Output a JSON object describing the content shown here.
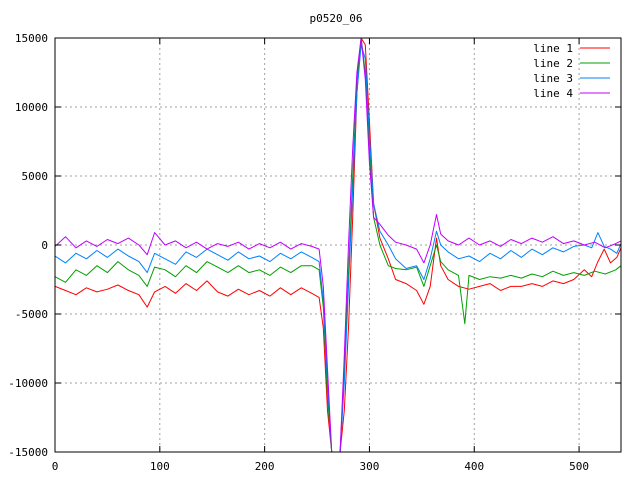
{
  "chart_data": {
    "type": "line",
    "title": "p0520_06",
    "xlabel": "",
    "ylabel": "",
    "xlim": [
      0,
      540
    ],
    "ylim": [
      -15000,
      15000
    ],
    "xticks": [
      0,
      100,
      200,
      300,
      400,
      500
    ],
    "yticks": [
      -15000,
      -10000,
      -5000,
      0,
      5000,
      10000,
      15000
    ],
    "grid": true,
    "legend_position": "top-right",
    "series": [
      {
        "name": "line 1",
        "color": "#ff0000",
        "points": [
          [
            0,
            -3000
          ],
          [
            10,
            -3300
          ],
          [
            20,
            -3600
          ],
          [
            30,
            -3100
          ],
          [
            40,
            -3400
          ],
          [
            50,
            -3200
          ],
          [
            60,
            -2900
          ],
          [
            70,
            -3300
          ],
          [
            80,
            -3600
          ],
          [
            88,
            -4500
          ],
          [
            95,
            -3400
          ],
          [
            105,
            -3000
          ],
          [
            115,
            -3500
          ],
          [
            125,
            -2800
          ],
          [
            135,
            -3300
          ],
          [
            145,
            -2600
          ],
          [
            155,
            -3400
          ],
          [
            165,
            -3700
          ],
          [
            175,
            -3200
          ],
          [
            185,
            -3600
          ],
          [
            195,
            -3300
          ],
          [
            205,
            -3700
          ],
          [
            215,
            -3100
          ],
          [
            225,
            -3600
          ],
          [
            235,
            -3100
          ],
          [
            245,
            -3500
          ],
          [
            252,
            -3800
          ],
          [
            256,
            -6000
          ],
          [
            260,
            -12000
          ],
          [
            264,
            -15000
          ],
          [
            268,
            -15000
          ],
          [
            272,
            -15000
          ],
          [
            276,
            -12000
          ],
          [
            280,
            -6000
          ],
          [
            284,
            2000
          ],
          [
            288,
            11000
          ],
          [
            292,
            15000
          ],
          [
            296,
            14500
          ],
          [
            300,
            9000
          ],
          [
            304,
            3000
          ],
          [
            310,
            500
          ],
          [
            318,
            -1000
          ],
          [
            325,
            -2500
          ],
          [
            335,
            -2800
          ],
          [
            345,
            -3300
          ],
          [
            352,
            -4300
          ],
          [
            358,
            -3000
          ],
          [
            364,
            500
          ],
          [
            368,
            -1500
          ],
          [
            375,
            -2500
          ],
          [
            385,
            -3000
          ],
          [
            395,
            -3200
          ],
          [
            405,
            -3000
          ],
          [
            415,
            -2800
          ],
          [
            425,
            -3300
          ],
          [
            435,
            -3000
          ],
          [
            445,
            -3000
          ],
          [
            455,
            -2800
          ],
          [
            465,
            -3000
          ],
          [
            475,
            -2600
          ],
          [
            485,
            -2800
          ],
          [
            495,
            -2500
          ],
          [
            505,
            -1800
          ],
          [
            512,
            -2300
          ],
          [
            518,
            -1200
          ],
          [
            524,
            -300
          ],
          [
            530,
            -1300
          ],
          [
            536,
            -900
          ],
          [
            540,
            -200
          ]
        ]
      },
      {
        "name": "line 2",
        "color": "#00a000",
        "points": [
          [
            0,
            -2300
          ],
          [
            10,
            -2700
          ],
          [
            20,
            -1800
          ],
          [
            30,
            -2200
          ],
          [
            40,
            -1500
          ],
          [
            50,
            -2000
          ],
          [
            60,
            -1200
          ],
          [
            70,
            -1800
          ],
          [
            80,
            -2200
          ],
          [
            88,
            -3000
          ],
          [
            95,
            -1600
          ],
          [
            105,
            -1800
          ],
          [
            115,
            -2300
          ],
          [
            125,
            -1500
          ],
          [
            135,
            -2000
          ],
          [
            145,
            -1200
          ],
          [
            155,
            -1600
          ],
          [
            165,
            -2000
          ],
          [
            175,
            -1500
          ],
          [
            185,
            -2000
          ],
          [
            195,
            -1800
          ],
          [
            205,
            -2200
          ],
          [
            215,
            -1600
          ],
          [
            225,
            -2000
          ],
          [
            235,
            -1500
          ],
          [
            245,
            -1500
          ],
          [
            252,
            -1800
          ],
          [
            256,
            -4500
          ],
          [
            260,
            -11000
          ],
          [
            264,
            -15000
          ],
          [
            268,
            -15000
          ],
          [
            272,
            -15000
          ],
          [
            276,
            -9000
          ],
          [
            280,
            -2000
          ],
          [
            284,
            5000
          ],
          [
            288,
            12000
          ],
          [
            292,
            15000
          ],
          [
            296,
            12500
          ],
          [
            300,
            7000
          ],
          [
            304,
            2000
          ],
          [
            310,
            0
          ],
          [
            318,
            -1500
          ],
          [
            325,
            -1700
          ],
          [
            335,
            -1800
          ],
          [
            345,
            -1600
          ],
          [
            352,
            -3000
          ],
          [
            358,
            -1500
          ],
          [
            364,
            0
          ],
          [
            368,
            -1200
          ],
          [
            375,
            -1800
          ],
          [
            385,
            -2200
          ],
          [
            391,
            -5700
          ],
          [
            395,
            -2200
          ],
          [
            405,
            -2500
          ],
          [
            415,
            -2300
          ],
          [
            425,
            -2400
          ],
          [
            435,
            -2200
          ],
          [
            445,
            -2400
          ],
          [
            455,
            -2100
          ],
          [
            465,
            -2300
          ],
          [
            475,
            -1900
          ],
          [
            485,
            -2200
          ],
          [
            495,
            -2000
          ],
          [
            505,
            -2200
          ],
          [
            515,
            -1900
          ],
          [
            525,
            -2100
          ],
          [
            535,
            -1800
          ],
          [
            540,
            -1500
          ]
        ]
      },
      {
        "name": "line 3",
        "color": "#0080ff",
        "points": [
          [
            0,
            -800
          ],
          [
            10,
            -1300
          ],
          [
            20,
            -600
          ],
          [
            30,
            -1000
          ],
          [
            40,
            -400
          ],
          [
            50,
            -900
          ],
          [
            60,
            -300
          ],
          [
            70,
            -800
          ],
          [
            80,
            -1200
          ],
          [
            88,
            -2000
          ],
          [
            95,
            -600
          ],
          [
            105,
            -1000
          ],
          [
            115,
            -1400
          ],
          [
            125,
            -500
          ],
          [
            135,
            -900
          ],
          [
            145,
            -300
          ],
          [
            155,
            -700
          ],
          [
            165,
            -1100
          ],
          [
            175,
            -500
          ],
          [
            185,
            -1000
          ],
          [
            195,
            -800
          ],
          [
            205,
            -1200
          ],
          [
            215,
            -600
          ],
          [
            225,
            -1000
          ],
          [
            235,
            -500
          ],
          [
            245,
            -900
          ],
          [
            252,
            -1200
          ],
          [
            256,
            -4000
          ],
          [
            260,
            -10000
          ],
          [
            264,
            -15000
          ],
          [
            268,
            -15000
          ],
          [
            272,
            -15000
          ],
          [
            276,
            -10000
          ],
          [
            280,
            -3000
          ],
          [
            284,
            4000
          ],
          [
            288,
            11000
          ],
          [
            292,
            14500
          ],
          [
            296,
            13500
          ],
          [
            300,
            8000
          ],
          [
            304,
            3000
          ],
          [
            310,
            1000
          ],
          [
            318,
            0
          ],
          [
            325,
            -1000
          ],
          [
            335,
            -1700
          ],
          [
            345,
            -1500
          ],
          [
            352,
            -2500
          ],
          [
            358,
            -1000
          ],
          [
            364,
            1000
          ],
          [
            368,
            0
          ],
          [
            375,
            -500
          ],
          [
            385,
            -1000
          ],
          [
            395,
            -800
          ],
          [
            405,
            -1200
          ],
          [
            415,
            -600
          ],
          [
            425,
            -1000
          ],
          [
            435,
            -400
          ],
          [
            445,
            -900
          ],
          [
            455,
            -300
          ],
          [
            465,
            -700
          ],
          [
            475,
            -200
          ],
          [
            485,
            -500
          ],
          [
            495,
            -100
          ],
          [
            505,
            0
          ],
          [
            512,
            -200
          ],
          [
            518,
            900
          ],
          [
            524,
            -100
          ],
          [
            530,
            -300
          ],
          [
            536,
            -600
          ],
          [
            540,
            100
          ]
        ]
      },
      {
        "name": "line 4",
        "color": "#c000ff",
        "points": [
          [
            0,
            -100
          ],
          [
            10,
            600
          ],
          [
            20,
            -200
          ],
          [
            30,
            300
          ],
          [
            40,
            -100
          ],
          [
            50,
            400
          ],
          [
            60,
            100
          ],
          [
            70,
            500
          ],
          [
            80,
            0
          ],
          [
            88,
            -700
          ],
          [
            95,
            900
          ],
          [
            105,
            0
          ],
          [
            115,
            300
          ],
          [
            125,
            -200
          ],
          [
            135,
            200
          ],
          [
            145,
            -300
          ],
          [
            155,
            100
          ],
          [
            165,
            -100
          ],
          [
            175,
            200
          ],
          [
            185,
            -300
          ],
          [
            195,
            100
          ],
          [
            205,
            -200
          ],
          [
            215,
            200
          ],
          [
            225,
            -300
          ],
          [
            235,
            100
          ],
          [
            245,
            -100
          ],
          [
            252,
            -300
          ],
          [
            256,
            -3000
          ],
          [
            260,
            -9000
          ],
          [
            264,
            -15000
          ],
          [
            268,
            -15000
          ],
          [
            272,
            -15000
          ],
          [
            276,
            -8000
          ],
          [
            280,
            0
          ],
          [
            284,
            7000
          ],
          [
            288,
            12500
          ],
          [
            292,
            15000
          ],
          [
            296,
            12000
          ],
          [
            300,
            6000
          ],
          [
            304,
            2000
          ],
          [
            310,
            1500
          ],
          [
            318,
            700
          ],
          [
            325,
            200
          ],
          [
            335,
            0
          ],
          [
            345,
            -300
          ],
          [
            352,
            -1300
          ],
          [
            358,
            0
          ],
          [
            364,
            2200
          ],
          [
            368,
            800
          ],
          [
            375,
            300
          ],
          [
            385,
            0
          ],
          [
            395,
            500
          ],
          [
            405,
            0
          ],
          [
            415,
            300
          ],
          [
            425,
            -100
          ],
          [
            435,
            400
          ],
          [
            445,
            100
          ],
          [
            455,
            500
          ],
          [
            465,
            200
          ],
          [
            475,
            600
          ],
          [
            485,
            100
          ],
          [
            495,
            300
          ],
          [
            505,
            0
          ],
          [
            515,
            200
          ],
          [
            525,
            -200
          ],
          [
            535,
            100
          ],
          [
            540,
            300
          ]
        ]
      }
    ]
  }
}
